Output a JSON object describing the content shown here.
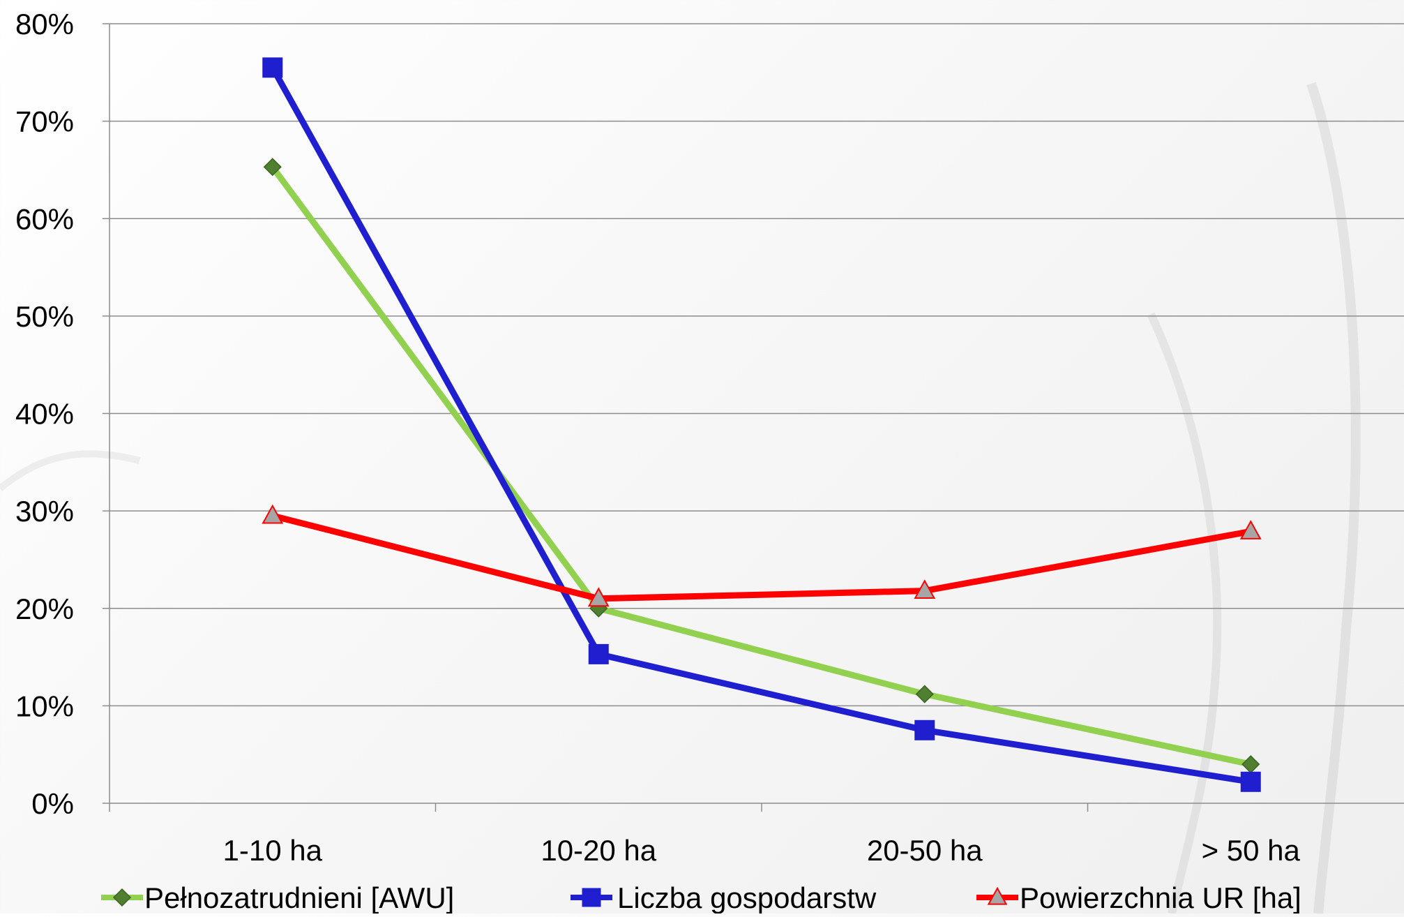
{
  "chart_data": {
    "type": "line",
    "categories": [
      "1-10 ha",
      "10-20 ha",
      "20-50 ha",
      "> 50 ha"
    ],
    "ylim": [
      0,
      0.8
    ],
    "yticks": [
      0,
      0.1,
      0.2,
      0.3,
      0.4,
      0.5,
      0.6,
      0.7,
      0.8
    ],
    "ytick_labels": [
      "0%",
      "10%",
      "20%",
      "30%",
      "40%",
      "50%",
      "60%",
      "70%",
      "80%"
    ],
    "grid": true,
    "legend_position": "bottom",
    "series": [
      {
        "name": "Pełnozatrudnieni [AWU]",
        "values": [
          0.653,
          0.2,
          0.112,
          0.04
        ],
        "color": "#92d050",
        "marker": "diamond",
        "marker_color": "#4f7f2f"
      },
      {
        "name": "Liczba gospodarstw",
        "values": [
          0.755,
          0.153,
          0.075,
          0.022
        ],
        "color": "#1f1fcf",
        "marker": "square",
        "marker_color": "#1f1fcf"
      },
      {
        "name": "Powierzchnia UR [ha]",
        "values": [
          0.295,
          0.21,
          0.218,
          0.279
        ],
        "color": "#ff0000",
        "marker": "triangle",
        "marker_color": "#a6a6a6"
      }
    ]
  }
}
